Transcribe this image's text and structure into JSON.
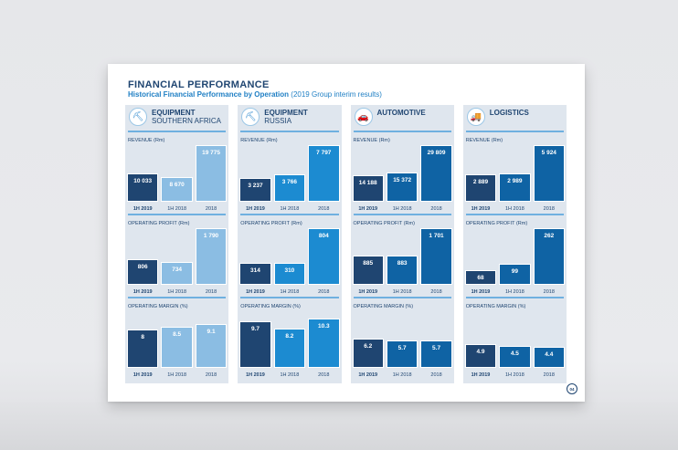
{
  "title": "FINANCIAL PERFORMANCE",
  "subtitle": "Historical Financial Performance by Operation",
  "subtitle_note": "(2019 Group interim results)",
  "page_number": "04",
  "colors": {
    "current": "#1f4571",
    "panel_accents": [
      "#8bbde3",
      "#1c8bd1",
      "#0f63a4",
      "#0f63a4"
    ],
    "panel_bg": "#dfe6ee",
    "rule": "#6fb0e0"
  },
  "panels": [
    {
      "name": "EQUIPMENT",
      "sub": "SOUTHERN AFRICA",
      "icon": "excavator-icon",
      "glyph": "⛏"
    },
    {
      "name": "EQUIPMENT",
      "sub": "RUSSIA",
      "icon": "excavator-icon",
      "glyph": "⛏"
    },
    {
      "name": "AUTOMOTIVE",
      "sub": "",
      "icon": "car-icon",
      "glyph": "🚗"
    },
    {
      "name": "LOGISTICS",
      "sub": "",
      "icon": "truck-icon",
      "glyph": "🚚"
    }
  ],
  "chart_data": [
    {
      "type": "bar",
      "panel": "EQUIPMENT SOUTHERN AFRICA",
      "title": "REVENUE",
      "unit": "(Rm)",
      "categories": [
        "1H 2019",
        "1H 2018",
        "2018"
      ],
      "values": [
        10033,
        8670,
        19775
      ],
      "labels": [
        "10 033",
        "8 670",
        "19 775"
      ]
    },
    {
      "type": "bar",
      "panel": "EQUIPMENT SOUTHERN AFRICA",
      "title": "OPERATING PROFIT",
      "unit": "(Rm)",
      "categories": [
        "1H 2019",
        "1H 2018",
        "2018"
      ],
      "values": [
        806,
        734,
        1790
      ],
      "labels": [
        "806",
        "734",
        "1 790"
      ]
    },
    {
      "type": "bar",
      "panel": "EQUIPMENT SOUTHERN AFRICA",
      "title": "OPERATING MARGIN",
      "unit": "(%)",
      "categories": [
        "1H 2019",
        "1H 2018",
        "2018"
      ],
      "values": [
        8,
        8.5,
        9.1
      ],
      "labels": [
        "8",
        "8.5",
        "9.1"
      ]
    },
    {
      "type": "bar",
      "panel": "EQUIPMENT RUSSIA",
      "title": "REVENUE",
      "unit": "(Rm)",
      "categories": [
        "1H 2019",
        "1H 2018",
        "2018"
      ],
      "values": [
        3237,
        3766,
        7797
      ],
      "labels": [
        "3 237",
        "3 766",
        "7 797"
      ]
    },
    {
      "type": "bar",
      "panel": "EQUIPMENT RUSSIA",
      "title": "OPERATING PROFIT",
      "unit": "(Rm)",
      "categories": [
        "1H 2019",
        "1H 2018",
        "2018"
      ],
      "values": [
        314,
        310,
        804
      ],
      "labels": [
        "314",
        "310",
        "804"
      ]
    },
    {
      "type": "bar",
      "panel": "EQUIPMENT RUSSIA",
      "title": "OPERATING MARGIN",
      "unit": "(%)",
      "categories": [
        "1H 2019",
        "1H 2018",
        "2018"
      ],
      "values": [
        9.7,
        8.2,
        10.3
      ],
      "labels": [
        "9.7",
        "8.2",
        "10.3"
      ]
    },
    {
      "type": "bar",
      "panel": "AUTOMOTIVE",
      "title": "REVENUE",
      "unit": "(Rm)",
      "categories": [
        "1H 2019",
        "1H 2018",
        "2018"
      ],
      "values": [
        14188,
        15372,
        29809
      ],
      "labels": [
        "14 188",
        "15 372",
        "29 809"
      ]
    },
    {
      "type": "bar",
      "panel": "AUTOMOTIVE",
      "title": "OPERATING PROFIT",
      "unit": "(Rm)",
      "categories": [
        "1H 2019",
        "1H 2018",
        "2018"
      ],
      "values": [
        885,
        883,
        1701
      ],
      "labels": [
        "885",
        "883",
        "1 701"
      ]
    },
    {
      "type": "bar",
      "panel": "AUTOMOTIVE",
      "title": "OPERATING MARGIN",
      "unit": "(%)",
      "categories": [
        "1H 2019",
        "1H 2018",
        "2018"
      ],
      "values": [
        6.2,
        5.7,
        5.7
      ],
      "labels": [
        "6.2",
        "5.7",
        "5.7"
      ]
    },
    {
      "type": "bar",
      "panel": "LOGISTICS",
      "title": "REVENUE",
      "unit": "(Rm)",
      "categories": [
        "1H 2019",
        "1H 2018",
        "2018"
      ],
      "values": [
        2889,
        2989,
        5924
      ],
      "labels": [
        "2 889",
        "2 989",
        "5 924"
      ]
    },
    {
      "type": "bar",
      "panel": "LOGISTICS",
      "title": "OPERATING PROFIT",
      "unit": "(Rm)",
      "categories": [
        "1H 2019",
        "1H 2018",
        "2018"
      ],
      "values": [
        68,
        99,
        262
      ],
      "labels": [
        "68",
        "99",
        "262"
      ]
    },
    {
      "type": "bar",
      "panel": "LOGISTICS",
      "title": "OPERATING MARGIN",
      "unit": "(%)",
      "categories": [
        "1H 2019",
        "1H 2018",
        "2018"
      ],
      "values": [
        4.9,
        4.5,
        4.4
      ],
      "labels": [
        "4.9",
        "4.5",
        "4.4"
      ]
    }
  ]
}
